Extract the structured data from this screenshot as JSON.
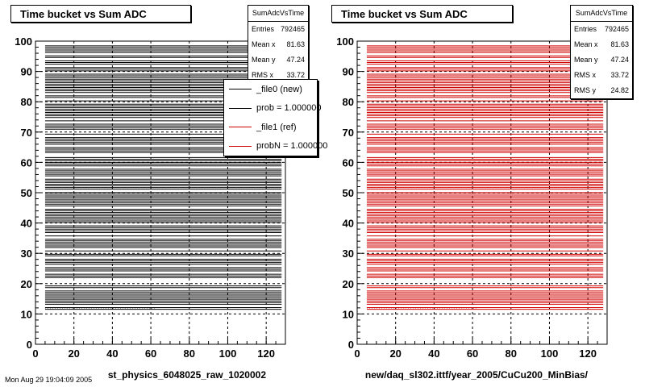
{
  "chart_data": [
    {
      "type": "line",
      "title": "Time bucket vs Sum ADC",
      "xlabel": "st_physics_6048025_raw_1020002",
      "ylabel": "",
      "xlim": [
        0,
        130
      ],
      "ylim": [
        0,
        100
      ],
      "xticks": [
        0,
        20,
        40,
        60,
        80,
        100,
        120
      ],
      "yticks": [
        0,
        10,
        20,
        30,
        40,
        50,
        60,
        70,
        80,
        90,
        100
      ],
      "grid": true,
      "line_color": "#000000",
      "x_range_filled": [
        5,
        128
      ],
      "stats": {
        "name": "SumAdcVsTime",
        "rows": [
          {
            "label": "Entries",
            "value": "792465"
          },
          {
            "label": "Mean x",
            "value": "81.63"
          },
          {
            "label": "Mean y",
            "value": "47.24"
          },
          {
            "label": "RMS x",
            "value": "33.72"
          }
        ]
      },
      "legend": {
        "position": "top-right",
        "entries": [
          {
            "label": "_file0 (new)",
            "color": "#000000"
          },
          {
            "label": "prob = 1.000000",
            "color": "#000000"
          },
          {
            "label": "_file1 (ref)",
            "color": "#d00000"
          },
          {
            "label": "probN = 1.000000",
            "color": "#d00000"
          }
        ]
      }
    },
    {
      "type": "line",
      "title": "Time bucket vs Sum ADC",
      "xlabel": "new/daq_sl302.ittf/year_2005/CuCu200_MinBias/",
      "ylabel": "",
      "xlim": [
        0,
        130
      ],
      "ylim": [
        0,
        100
      ],
      "xticks": [
        0,
        20,
        40,
        60,
        80,
        100,
        120
      ],
      "yticks": [
        0,
        10,
        20,
        30,
        40,
        50,
        60,
        70,
        80,
        90,
        100
      ],
      "grid": true,
      "line_color": "#d00000",
      "x_range_filled": [
        5,
        128
      ],
      "stats": {
        "name": "SumAdcVsTime",
        "rows": [
          {
            "label": "Entries",
            "value": "792465"
          },
          {
            "label": "Mean x",
            "value": "81.63"
          },
          {
            "label": "Mean y",
            "value": "47.24"
          },
          {
            "label": "RMS x",
            "value": "33.72"
          },
          {
            "label": "RMS y",
            "value": "24.82"
          }
        ]
      }
    }
  ],
  "footer": "Mon Aug 29 19:04:09 2005"
}
